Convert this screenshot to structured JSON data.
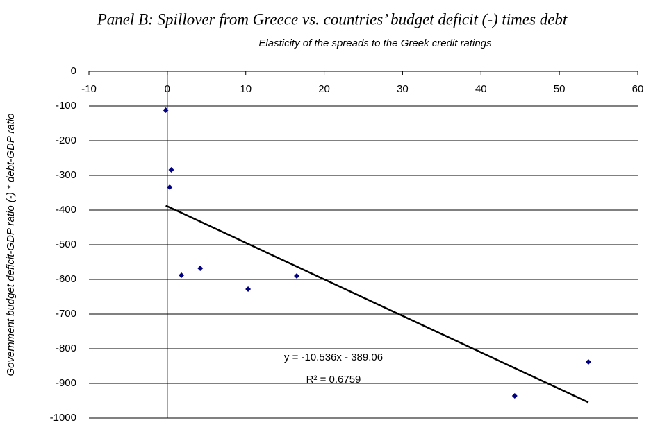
{
  "chart_data": {
    "type": "scatter",
    "title": "Panel B: Spillover from Greece vs. countries’ budget deficit (-) times debt",
    "x_label": "Elasticity of the spreads to the Greek credit ratings",
    "y_label": "Government budget deficit-GDP ratio (-) * debt-GDP ratio",
    "x": [
      -0.2,
      0.5,
      0.3,
      1.8,
      4.2,
      10.3,
      16.5,
      44.3,
      53.7
    ],
    "y": [
      -112,
      -284,
      -334,
      -588,
      -568,
      -628,
      -590,
      -936,
      -838
    ],
    "color": "#000080",
    "xlim": [
      -10,
      60
    ],
    "xticks": [
      -10,
      0,
      10,
      20,
      30,
      40,
      50,
      60
    ],
    "ylim": [
      -1000,
      0
    ],
    "yticks": [
      0,
      -100,
      -200,
      -300,
      -400,
      -500,
      -600,
      -700,
      -800,
      -900,
      -1000
    ],
    "grid": true,
    "trendline": {
      "slope": -10.536,
      "intercept": -389.06,
      "color": "#000000",
      "equation": "y = -10.536x - 389.06",
      "r2_label": "R² = 0.6759"
    }
  }
}
